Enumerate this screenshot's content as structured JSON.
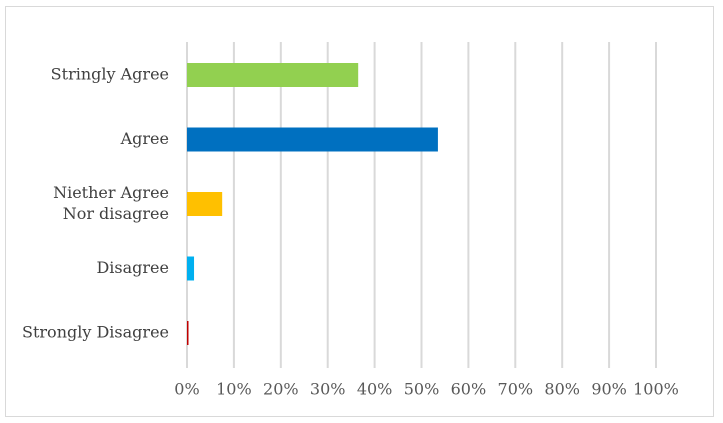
{
  "chart_data": {
    "type": "bar",
    "orientation": "horizontal",
    "categories": [
      [
        "Stringly Agree"
      ],
      [
        "Agree"
      ],
      [
        "Niether Agree",
        "Nor disagree"
      ],
      [
        "Disagree"
      ],
      [
        "Strongly Disagree"
      ]
    ],
    "values": [
      36.5,
      53.5,
      7.5,
      1.5,
      0.2
    ],
    "bar_colors": [
      "#92d050",
      "#0070c0",
      "#ffc000",
      "#00b0f0",
      "#c00000"
    ],
    "x_ticks": [
      "0%",
      "10%",
      "20%",
      "30%",
      "40%",
      "50%",
      "60%",
      "70%",
      "80%",
      "90%",
      "100%"
    ],
    "xlim": [
      0,
      100
    ],
    "grid": true,
    "legend": false,
    "title": "",
    "xlabel": "",
    "ylabel": ""
  }
}
